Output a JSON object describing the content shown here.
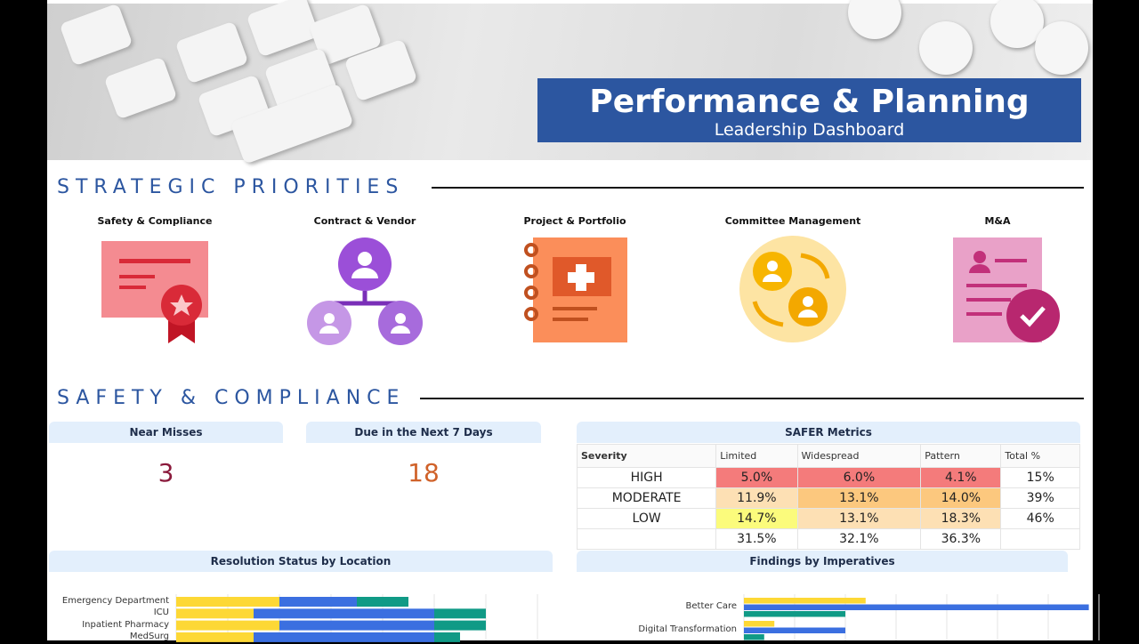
{
  "header": {
    "title": "Performance & Planning",
    "subtitle": "Leadership Dashboard"
  },
  "strategic": {
    "heading": "STRATEGIC PRIORITIES",
    "items": [
      {
        "label": "Safety & Compliance",
        "icon": "certificate-icon"
      },
      {
        "label": "Contract & Vendor",
        "icon": "org-chart-icon"
      },
      {
        "label": "Project & Portfolio",
        "icon": "medical-notebook-icon"
      },
      {
        "label": "Committee Management",
        "icon": "user-exchange-icon"
      },
      {
        "label": "M&A",
        "icon": "approved-document-icon"
      }
    ]
  },
  "safety": {
    "heading": "SAFETY & COMPLIANCE",
    "near_misses": {
      "label": "Near Misses",
      "value": "3",
      "color": "#8b1a3c"
    },
    "due_next": {
      "label": "Due in the Next 7 Days",
      "value": "18",
      "color": "#d0622a"
    },
    "safer": {
      "title": "SAFER Metrics",
      "headers": [
        "Severity",
        "Limited",
        "Widespread",
        "Pattern",
        "Total %"
      ],
      "rows": [
        {
          "cells": [
            "HIGH",
            "5.0%",
            "6.0%",
            "4.1%",
            "15%"
          ],
          "colors": [
            "#fff",
            "#f47b7b",
            "#f47b7b",
            "#f47b7b",
            "#fff"
          ]
        },
        {
          "cells": [
            "MODERATE",
            "11.9%",
            "13.1%",
            "14.0%",
            "39%"
          ],
          "colors": [
            "#fff",
            "#fde0b4",
            "#fcc87e",
            "#fcc87e",
            "#fff"
          ]
        },
        {
          "cells": [
            "LOW",
            "14.7%",
            "13.1%",
            "18.3%",
            "46%"
          ],
          "colors": [
            "#fff",
            "#fbfb7c",
            "#fde0b4",
            "#fde0b4",
            "#fff"
          ]
        },
        {
          "cells": [
            "",
            "31.5%",
            "32.1%",
            "36.3%",
            ""
          ],
          "colors": [
            "#fff",
            "#fff",
            "#fff",
            "#fff",
            "#fff"
          ]
        }
      ]
    }
  },
  "chart_data": [
    {
      "type": "bar",
      "orientation": "horizontal",
      "stacked": true,
      "title": "Resolution Status by Location",
      "grid": true,
      "categories": [
        "Emergency Department",
        "ICU",
        "Inpatient Pharmacy",
        "MedSurg"
      ],
      "colors": [
        "#fdd835",
        "#3b6fe0",
        "#109a86"
      ],
      "series": [
        {
          "values": [
            2,
            1.5,
            2,
            1.5
          ]
        },
        {
          "values": [
            1.5,
            3.5,
            3,
            3.5
          ]
        },
        {
          "values": [
            1,
            1,
            1,
            0.5
          ]
        }
      ]
    },
    {
      "type": "bar",
      "orientation": "horizontal",
      "stacked": false,
      "title": "Findings by Imperatives",
      "grid": true,
      "categories": [
        "Better Care",
        "Digital Transformation"
      ],
      "colors": [
        "#fdd835",
        "#3b6fe0",
        "#109a86"
      ],
      "series": [
        {
          "values": [
            2.4,
            0.6
          ]
        },
        {
          "values": [
            6.8,
            2
          ]
        },
        {
          "values": [
            2,
            0.4
          ]
        }
      ]
    }
  ]
}
